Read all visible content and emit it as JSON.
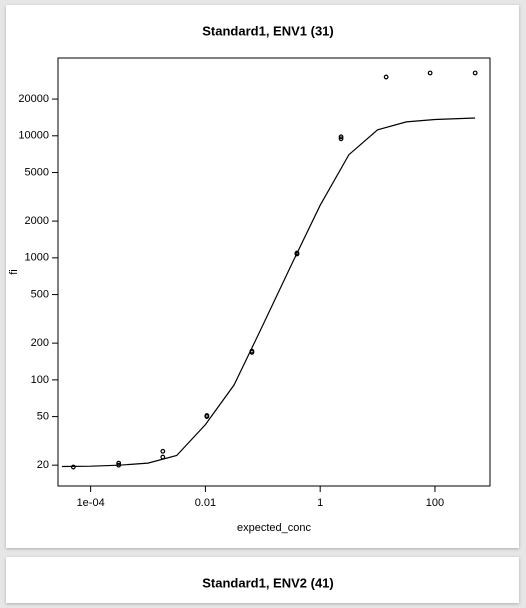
{
  "chart_data": [
    {
      "type": "scatter",
      "title": "Standard1, ENV1 (31)",
      "xlabel": "expected_conc",
      "ylabel": "fi",
      "log_x": true,
      "log_y": true,
      "xlim": [
        2.7e-05,
        910
      ],
      "ylim": [
        13.5,
        43400
      ],
      "xticks": [
        {
          "value": 0.0001,
          "label": "1e-04"
        },
        0.01,
        1,
        100
      ],
      "yticks": [
        20,
        50,
        100,
        200,
        500,
        1000,
        2000,
        5000,
        10000,
        20000
      ],
      "series": [
        {
          "mode": "points",
          "color": "#000000",
          "x": [
            5e-05,
            0.000308,
            0.000308,
            0.00181,
            0.00181,
            0.0106,
            0.0106,
            0.0646,
            0.0646,
            0.394,
            0.394,
            2.31,
            2.31,
            14.1,
            82.4,
            502
          ],
          "values": [
            19.3,
            20.8,
            20,
            26,
            23.3,
            50,
            51,
            172,
            168,
            1094,
            1075,
            9810,
            9450,
            30300,
            32700,
            32700
          ]
        },
        {
          "mode": "line",
          "color": "#000000",
          "x": [
            3.16e-05,
            0.0001,
            0.000316,
            0.001,
            0.00316,
            0.01,
            0.0316,
            0.1,
            0.316,
            1,
            3.16,
            10,
            31.6,
            100,
            500
          ],
          "values": [
            19.5,
            19.6,
            20,
            20.8,
            24,
            43,
            91,
            280,
            880,
            2700,
            7000,
            11200,
            13000,
            13600,
            14000
          ]
        }
      ]
    },
    {
      "type": "scatter",
      "title": "Standard1, ENV2 (41)"
    }
  ]
}
